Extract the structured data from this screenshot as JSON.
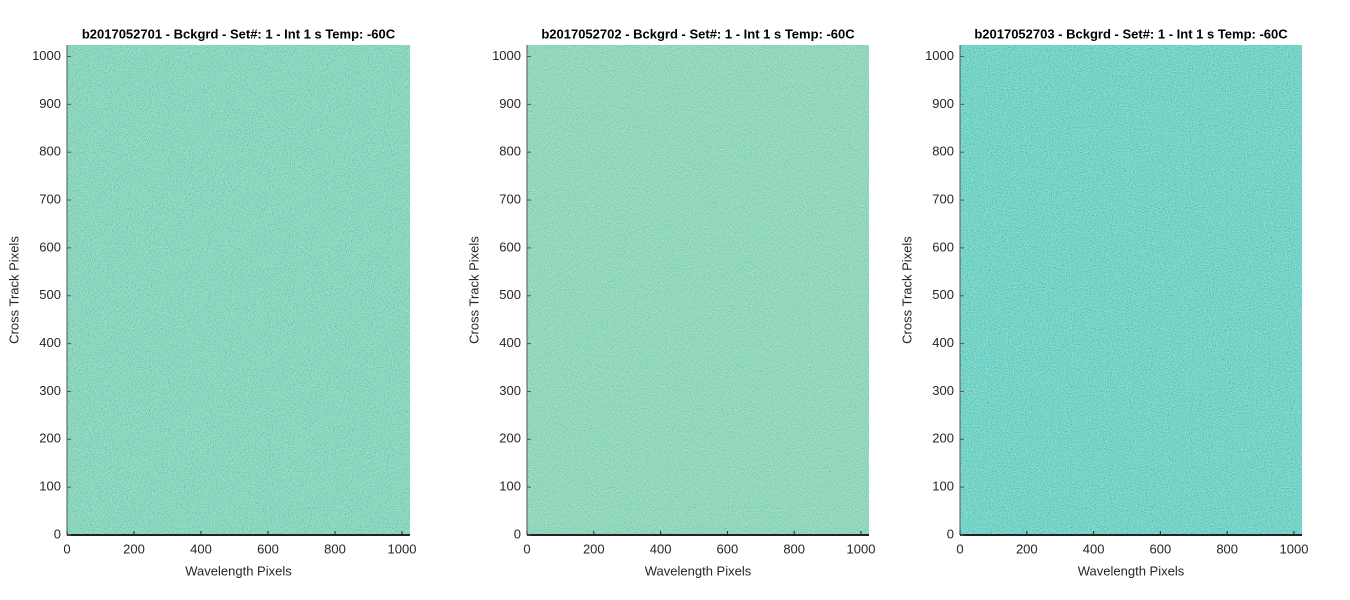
{
  "chart_data": [
    {
      "type": "image",
      "title": "b2017052701 - Bckgrd - Set#: 1 - Int 1 s Temp: -60C",
      "xlabel": "Wavelength Pixels",
      "ylabel": "Cross Track Pixels",
      "xlim": [
        0,
        1024
      ],
      "ylim": [
        0,
        1024
      ],
      "xticks": [
        0,
        200,
        400,
        600,
        800,
        1000
      ],
      "yticks": [
        0,
        100,
        200,
        300,
        400,
        500,
        600,
        700,
        800,
        900,
        1000
      ]
    },
    {
      "type": "image",
      "title": "b2017052702 - Bckgrd - Set#: 1 - Int 1 s Temp: -60C",
      "xlabel": "Wavelength Pixels",
      "ylabel": "Cross Track Pixels",
      "xlim": [
        0,
        1024
      ],
      "ylim": [
        0,
        1024
      ],
      "xticks": [
        0,
        200,
        400,
        600,
        800,
        1000
      ],
      "yticks": [
        0,
        100,
        200,
        300,
        400,
        500,
        600,
        700,
        800,
        900,
        1000
      ]
    },
    {
      "type": "image",
      "title": "b2017052703 - Bckgrd - Set#: 1 - Int 1 s Temp: -60C",
      "xlabel": "Wavelength Pixels",
      "ylabel": "Cross Track Pixels",
      "xlim": [
        0,
        1024
      ],
      "ylim": [
        0,
        1024
      ],
      "xticks": [
        0,
        200,
        400,
        600,
        800,
        1000
      ],
      "yticks": [
        0,
        100,
        200,
        300,
        400,
        500,
        600,
        700,
        800,
        900,
        1000
      ]
    }
  ]
}
